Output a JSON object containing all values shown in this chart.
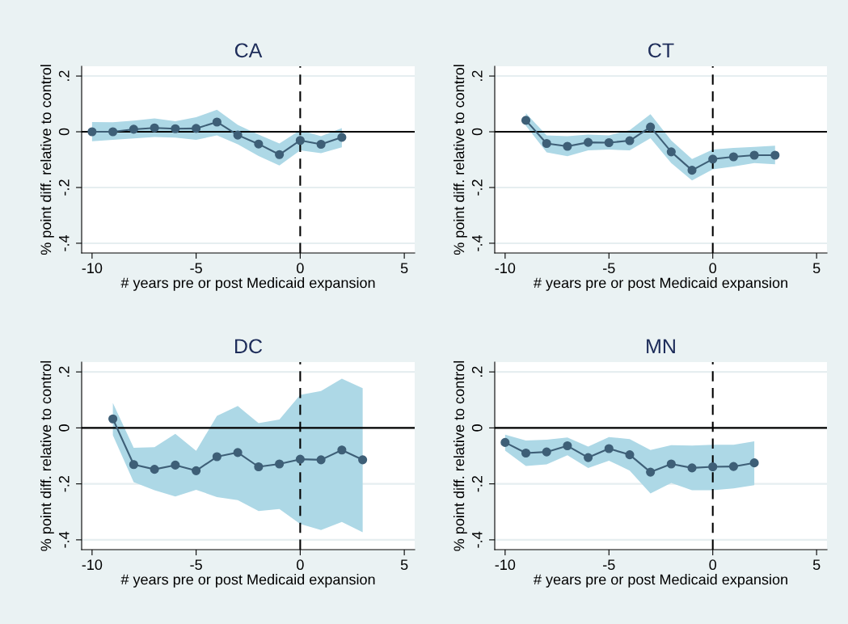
{
  "chart_data": [
    {
      "type": "line",
      "title": "CA",
      "xlabel": "# years pre or post Medicaid expansion",
      "ylabel": "% point diff. relative to control",
      "xlim": [
        -10.5,
        5.5
      ],
      "xticks": [
        -10,
        -5,
        0,
        5
      ],
      "ylim": [
        -0.435,
        0.235
      ],
      "yticks": [
        {
          "value": 0.2,
          "label": ".2"
        },
        0,
        {
          "value": -0.2,
          "label": "-.2"
        },
        {
          "value": -0.4,
          "label": "-.4"
        }
      ],
      "grid": "y",
      "marker": "circle",
      "line_style": "solid",
      "ref_lines": [
        {
          "axis": "y",
          "value": 0,
          "color": "#000000",
          "line_style": "solid"
        },
        {
          "axis": "x",
          "value": 0,
          "color": "#000000",
          "line_style": "dashed"
        }
      ],
      "series": [
        {
          "color": "#3e5f77",
          "x": [
            -10,
            -9,
            -8,
            -7,
            -6,
            -5,
            -4,
            -3,
            -2,
            -1,
            0,
            1,
            2
          ],
          "values": [
            0.0,
            0.0,
            0.009,
            0.014,
            0.011,
            0.012,
            0.035,
            -0.012,
            -0.044,
            -0.082,
            -0.031,
            -0.045,
            -0.02
          ],
          "lower": [
            -0.034,
            -0.029,
            -0.024,
            -0.019,
            -0.021,
            -0.029,
            -0.013,
            -0.045,
            -0.087,
            -0.121,
            -0.067,
            -0.077,
            -0.056
          ],
          "upper": [
            0.035,
            0.034,
            0.04,
            0.048,
            0.038,
            0.052,
            0.079,
            0.025,
            -0.01,
            -0.042,
            0.006,
            -0.016,
            0.013
          ]
        }
      ]
    },
    {
      "type": "line",
      "title": "CT",
      "xlabel": "# years pre or post Medicaid expansion",
      "ylabel": "% point diff. relative to control",
      "xlim": [
        -10.5,
        5.5
      ],
      "xticks": [
        -10,
        -5,
        0,
        5
      ],
      "ylim": [
        -0.435,
        0.235
      ],
      "yticks": [
        {
          "value": 0.2,
          "label": ".2"
        },
        0,
        {
          "value": -0.2,
          "label": "-.2"
        },
        {
          "value": -0.4,
          "label": "-.4"
        }
      ],
      "grid": "y",
      "marker": "circle",
      "line_style": "solid",
      "ref_lines": [
        {
          "axis": "y",
          "value": 0,
          "color": "#000000",
          "line_style": "solid"
        },
        {
          "axis": "x",
          "value": 0,
          "color": "#000000",
          "line_style": "dashed"
        }
      ],
      "series": [
        {
          "color": "#3e5f77",
          "x": [
            -9,
            -8,
            -7,
            -6,
            -5,
            -4,
            -3,
            -2,
            -1,
            0,
            1,
            2,
            3
          ],
          "values": [
            0.041,
            -0.042,
            -0.052,
            -0.038,
            -0.039,
            -0.032,
            0.017,
            -0.072,
            -0.138,
            -0.098,
            -0.09,
            -0.084,
            -0.084
          ],
          "lower": [
            0.022,
            -0.074,
            -0.088,
            -0.067,
            -0.064,
            -0.067,
            -0.023,
            -0.112,
            -0.175,
            -0.135,
            -0.125,
            -0.112,
            -0.117
          ],
          "upper": [
            0.067,
            -0.013,
            -0.016,
            -0.01,
            -0.013,
            0.006,
            0.063,
            -0.031,
            -0.098,
            -0.064,
            -0.058,
            -0.054,
            -0.05
          ]
        }
      ]
    },
    {
      "type": "line",
      "title": "DC",
      "xlabel": "# years pre or post Medicaid expansion",
      "ylabel": "% point diff. relative to control",
      "xlim": [
        -10.5,
        5.5
      ],
      "xticks": [
        -10,
        -5,
        0,
        5
      ],
      "ylim": [
        -0.435,
        0.235
      ],
      "yticks": [
        {
          "value": 0.2,
          "label": ".2"
        },
        0,
        {
          "value": -0.2,
          "label": "-.2"
        },
        {
          "value": -0.4,
          "label": "-.4"
        }
      ],
      "grid": "y",
      "marker": "circle",
      "line_style": "solid",
      "ref_lines": [
        {
          "axis": "y",
          "value": 0,
          "color": "#000000",
          "line_style": "solid"
        },
        {
          "axis": "x",
          "value": 0,
          "color": "#000000",
          "line_style": "dashed"
        }
      ],
      "series": [
        {
          "color": "#3e5f77",
          "x": [
            -9,
            -8,
            -7,
            -6,
            -5,
            -4,
            -3,
            -2,
            -1,
            0,
            1,
            2,
            3
          ],
          "values": [
            0.032,
            -0.131,
            -0.148,
            -0.133,
            -0.153,
            -0.103,
            -0.088,
            -0.139,
            -0.129,
            -0.112,
            -0.114,
            -0.079,
            -0.114
          ],
          "lower": [
            -0.026,
            -0.194,
            -0.223,
            -0.245,
            -0.221,
            -0.247,
            -0.258,
            -0.297,
            -0.29,
            -0.343,
            -0.365,
            -0.336,
            -0.373
          ],
          "upper": [
            0.089,
            -0.071,
            -0.069,
            -0.021,
            -0.082,
            0.043,
            0.078,
            0.017,
            0.03,
            0.118,
            0.132,
            0.176,
            0.142
          ]
        }
      ]
    },
    {
      "type": "line",
      "title": "MN",
      "xlabel": "# years pre or post Medicaid expansion",
      "ylabel": "% point diff. relative to control",
      "xlim": [
        -10.5,
        5.5
      ],
      "xticks": [
        -10,
        -5,
        0,
        5
      ],
      "ylim": [
        -0.435,
        0.235
      ],
      "yticks": [
        {
          "value": 0.2,
          "label": ".2"
        },
        0,
        {
          "value": -0.2,
          "label": "-.2"
        },
        {
          "value": -0.4,
          "label": "-.4"
        }
      ],
      "grid": "y",
      "marker": "circle",
      "line_style": "solid",
      "ref_lines": [
        {
          "axis": "y",
          "value": 0,
          "color": "#000000",
          "line_style": "solid"
        },
        {
          "axis": "x",
          "value": 0,
          "color": "#000000",
          "line_style": "dashed"
        }
      ],
      "series": [
        {
          "color": "#3e5f77",
          "x": [
            -10,
            -9,
            -8,
            -7,
            -6,
            -5,
            -4,
            -3,
            -2,
            -1,
            0,
            1,
            2
          ],
          "values": [
            -0.052,
            -0.09,
            -0.086,
            -0.064,
            -0.106,
            -0.074,
            -0.096,
            -0.158,
            -0.129,
            -0.143,
            -0.139,
            -0.138,
            -0.125
          ],
          "lower": [
            -0.081,
            -0.136,
            -0.13,
            -0.098,
            -0.143,
            -0.117,
            -0.153,
            -0.234,
            -0.197,
            -0.223,
            -0.223,
            -0.216,
            -0.205
          ],
          "upper": [
            -0.024,
            -0.045,
            -0.042,
            -0.034,
            -0.067,
            -0.033,
            -0.04,
            -0.079,
            -0.062,
            -0.063,
            -0.06,
            -0.06,
            -0.048
          ]
        }
      ]
    }
  ]
}
